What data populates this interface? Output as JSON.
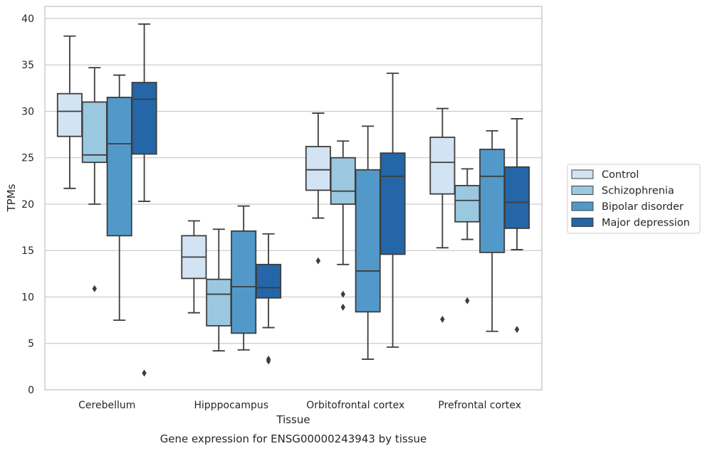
{
  "chart_data": {
    "type": "box",
    "title": "",
    "caption": "Gene expression for ENSG00000243943 by tissue",
    "xlabel": "Tissue",
    "ylabel": "TPMs",
    "ylim": [
      0,
      41.3
    ],
    "yticks": [
      0,
      5,
      10,
      15,
      20,
      25,
      30,
      35,
      40
    ],
    "grid": "horizontal",
    "legend_position": "right",
    "categories": [
      "Cerebellum",
      "Hipppocampus",
      "Orbitofrontal cortex",
      "Prefrontal cortex"
    ],
    "series": [
      {
        "name": "Control",
        "color": "#d2e3f3",
        "boxes": [
          {
            "whisker_low": 21.7,
            "q1": 27.3,
            "median": 30.0,
            "q3": 31.9,
            "whisker_high": 38.1,
            "outliers": []
          },
          {
            "whisker_low": 8.3,
            "q1": 12.0,
            "median": 14.3,
            "q3": 16.6,
            "whisker_high": 18.2,
            "outliers": []
          },
          {
            "whisker_low": 18.5,
            "q1": 21.5,
            "median": 23.7,
            "q3": 26.2,
            "whisker_high": 29.8,
            "outliers": [
              13.9
            ]
          },
          {
            "whisker_low": 15.3,
            "q1": 21.1,
            "median": 24.5,
            "q3": 27.2,
            "whisker_high": 30.3,
            "outliers": [
              7.6
            ]
          }
        ]
      },
      {
        "name": "Schizophrenia",
        "color": "#9ac8e0",
        "boxes": [
          {
            "whisker_low": 20.0,
            "q1": 24.5,
            "median": 25.3,
            "q3": 31.0,
            "whisker_high": 34.7,
            "outliers": [
              10.9
            ]
          },
          {
            "whisker_low": 4.2,
            "q1": 6.9,
            "median": 10.3,
            "q3": 11.9,
            "whisker_high": 17.3,
            "outliers": []
          },
          {
            "whisker_low": 13.5,
            "q1": 20.0,
            "median": 21.4,
            "q3": 25.0,
            "whisker_high": 26.8,
            "outliers": [
              10.3,
              8.9
            ]
          },
          {
            "whisker_low": 16.2,
            "q1": 18.1,
            "median": 20.4,
            "q3": 22.0,
            "whisker_high": 23.8,
            "outliers": [
              9.6
            ]
          }
        ]
      },
      {
        "name": "Bipolar disorder",
        "color": "#5299c9",
        "boxes": [
          {
            "whisker_low": 7.5,
            "q1": 16.6,
            "median": 26.5,
            "q3": 31.5,
            "whisker_high": 33.9,
            "outliers": []
          },
          {
            "whisker_low": 4.3,
            "q1": 6.1,
            "median": 11.1,
            "q3": 17.1,
            "whisker_high": 19.8,
            "outliers": []
          },
          {
            "whisker_low": 3.3,
            "q1": 8.4,
            "median": 12.8,
            "q3": 23.7,
            "whisker_high": 28.4,
            "outliers": []
          },
          {
            "whisker_low": 6.3,
            "q1": 14.8,
            "median": 23.0,
            "q3": 25.9,
            "whisker_high": 27.9,
            "outliers": []
          }
        ]
      },
      {
        "name": "Major depression",
        "color": "#2466a8",
        "boxes": [
          {
            "whisker_low": 20.3,
            "q1": 25.4,
            "median": 31.3,
            "q3": 33.1,
            "whisker_high": 39.4,
            "outliers": [
              1.8
            ]
          },
          {
            "whisker_low": 6.7,
            "q1": 9.9,
            "median": 11.0,
            "q3": 13.5,
            "whisker_high": 16.8,
            "outliers": [
              3.3,
              3.1
            ]
          },
          {
            "whisker_low": 4.6,
            "q1": 14.6,
            "median": 23.0,
            "q3": 25.5,
            "whisker_high": 34.1,
            "outliers": []
          },
          {
            "whisker_low": 15.1,
            "q1": 17.4,
            "median": 20.2,
            "q3": 24.0,
            "whisker_high": 29.2,
            "outliers": [
              6.5
            ]
          }
        ]
      }
    ]
  }
}
